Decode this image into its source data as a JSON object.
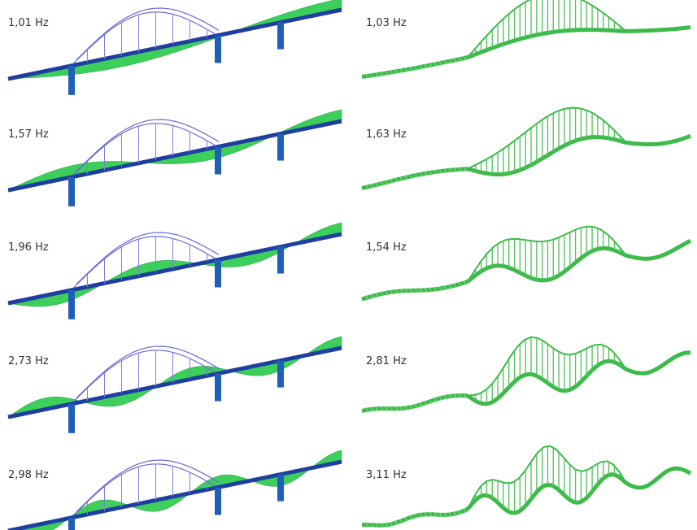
{
  "rows": [
    {
      "left": "1,01 Hz",
      "right": "1,03 Hz"
    },
    {
      "left": "1,57 Hz",
      "right": "1,63 Hz"
    },
    {
      "left": "1,96 Hz",
      "right": "1,54 Hz"
    },
    {
      "left": "2,73 Hz",
      "right": "2,81 Hz"
    },
    {
      "left": "2,98 Hz",
      "right": "3,11 Hz"
    }
  ]
}
